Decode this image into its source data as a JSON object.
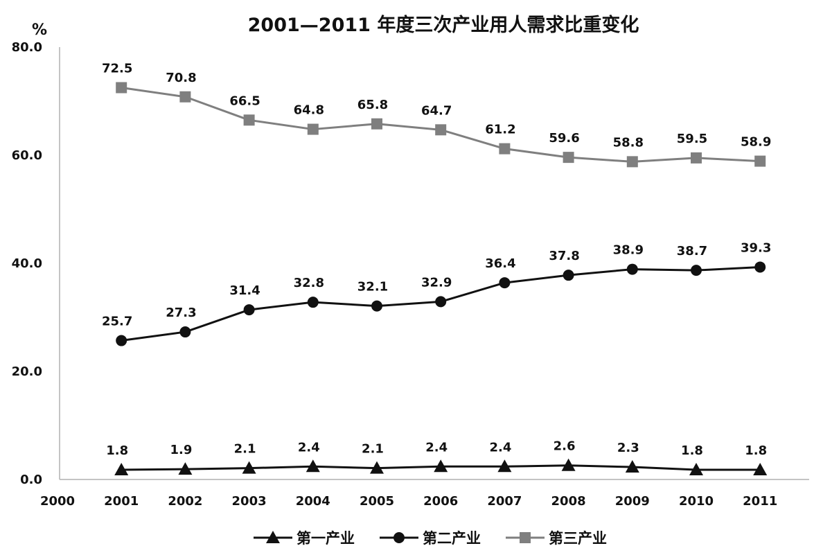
{
  "chart_data": {
    "type": "line",
    "title": "2001—2011 年度三次产业用人需求比重变化",
    "ylabel": "%",
    "xlabel": "",
    "ylim": [
      0,
      80
    ],
    "yticks": [
      "0.0",
      "20.0",
      "40.0",
      "60.0",
      "80.0"
    ],
    "x": [
      "2000",
      "2001",
      "2002",
      "2003",
      "2004",
      "2005",
      "2006",
      "2007",
      "2008",
      "2009",
      "2010",
      "2011"
    ],
    "legend_position": "bottom",
    "grid": false,
    "series": [
      {
        "name": "第一产业",
        "marker": "triangle",
        "color": "#111111",
        "x": [
          "2001",
          "2002",
          "2003",
          "2004",
          "2005",
          "2006",
          "2007",
          "2008",
          "2009",
          "2010",
          "2011"
        ],
        "values": [
          1.8,
          1.9,
          2.1,
          2.4,
          2.1,
          2.4,
          2.4,
          2.6,
          2.3,
          1.8,
          1.8
        ],
        "labels": [
          "1.8",
          "1.9",
          "2.1",
          "2.4",
          "2.1",
          "2.4",
          "2.4",
          "2.6",
          "2.3",
          "1.8",
          "1.8"
        ]
      },
      {
        "name": "第二产业",
        "marker": "circle",
        "color": "#111111",
        "x": [
          "2001",
          "2002",
          "2003",
          "2004",
          "2005",
          "2006",
          "2007",
          "2008",
          "2009",
          "2010",
          "2011"
        ],
        "values": [
          25.7,
          27.3,
          31.4,
          32.8,
          32.1,
          32.9,
          36.4,
          37.8,
          38.9,
          38.7,
          39.3
        ],
        "labels": [
          "25.7",
          "27.3",
          "31.4",
          "32.8",
          "32.1",
          "32.9",
          "36.4",
          "37.8",
          "38.9",
          "38.7",
          "39.3"
        ]
      },
      {
        "name": "第三产业",
        "marker": "square",
        "color": "#7f7f7f",
        "x": [
          "2001",
          "2002",
          "2003",
          "2004",
          "2005",
          "2006",
          "2007",
          "2008",
          "2009",
          "2010",
          "2011"
        ],
        "values": [
          72.5,
          70.8,
          66.5,
          64.8,
          65.8,
          64.7,
          61.2,
          59.6,
          58.8,
          59.5,
          58.9
        ],
        "labels": [
          "72.5",
          "70.8",
          "66.5",
          "64.8",
          "65.8",
          "64.7",
          "61.2",
          "59.6",
          "58.8",
          "59.5",
          "58.9"
        ]
      }
    ]
  }
}
